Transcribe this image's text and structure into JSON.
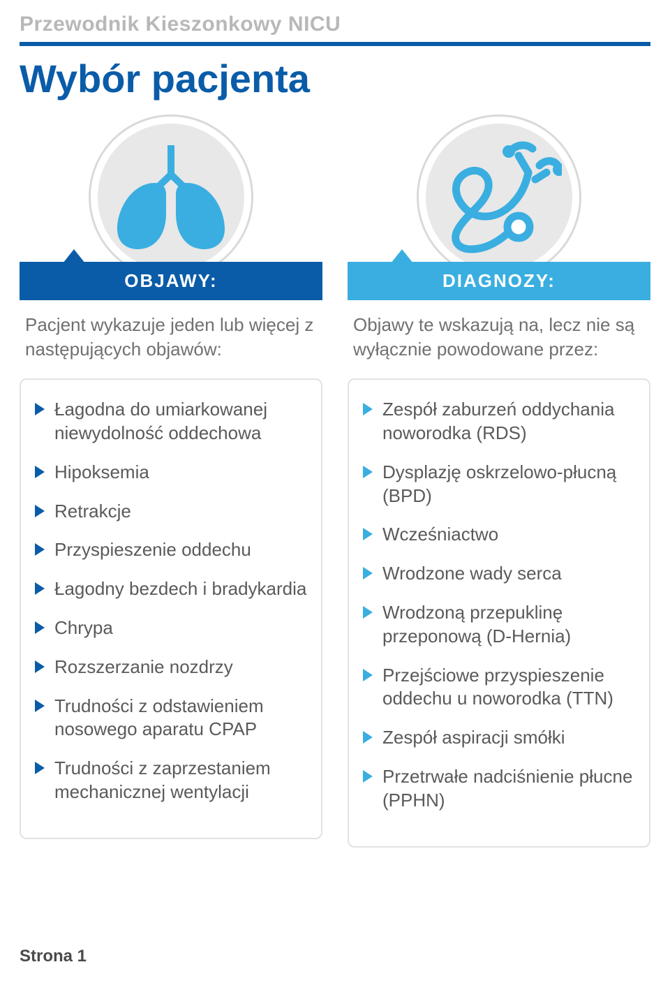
{
  "header": {
    "doc_title": "Przewodnik Kieszonkowy NICU",
    "page_title": "Wybór pacjenta"
  },
  "colors": {
    "primary_dark": "#0a5ca8",
    "primary_light": "#3aaee0",
    "circle_bg": "#e8e8e8",
    "border": "#e2e2e2",
    "text": "#5a5a5a",
    "text_muted": "#707070",
    "title_gray": "#b8b8b8",
    "white": "#ffffff"
  },
  "typography": {
    "doc_title_size": 30,
    "page_title_size": 56,
    "label_size": 26,
    "body_size": 26
  },
  "left": {
    "label": "OBJAWY:",
    "intro": "Pacjent wykazuje jeden lub więcej z następujących objawów:",
    "items": [
      "Łagodna do umiarkowanej niewydolność oddechowa",
      "Hipoksemia",
      "Retrakcje",
      "Przyspieszenie oddechu",
      "Łagodny bezdech i bradykardia",
      "Chrypa",
      "Rozszerzanie nozdrzy",
      "Trudności z odstawieniem nosowego aparatu CPAP",
      "Trudności z zaprzestaniem mechanicznej wentylacji"
    ]
  },
  "right": {
    "label": "DIAGNOZY:",
    "intro": "Objawy te wskazują na, lecz nie są wyłącznie powodowane przez:",
    "items": [
      "Zespół zaburzeń oddychania noworodka (RDS)",
      "Dysplazję oskrzelowo-płucną (BPD)",
      "Wcześniactwo",
      "Wrodzone wady serca",
      "Wrodzoną przepuklinę przeponową (D-Hernia)",
      "Przejściowe przyspieszenie oddechu u noworodka (TTN)",
      "Zespół aspiracji smółki",
      "Przetrwałe nadciśnienie płucne (PPHN)"
    ]
  },
  "footer": {
    "page_label": "Strona 1"
  }
}
